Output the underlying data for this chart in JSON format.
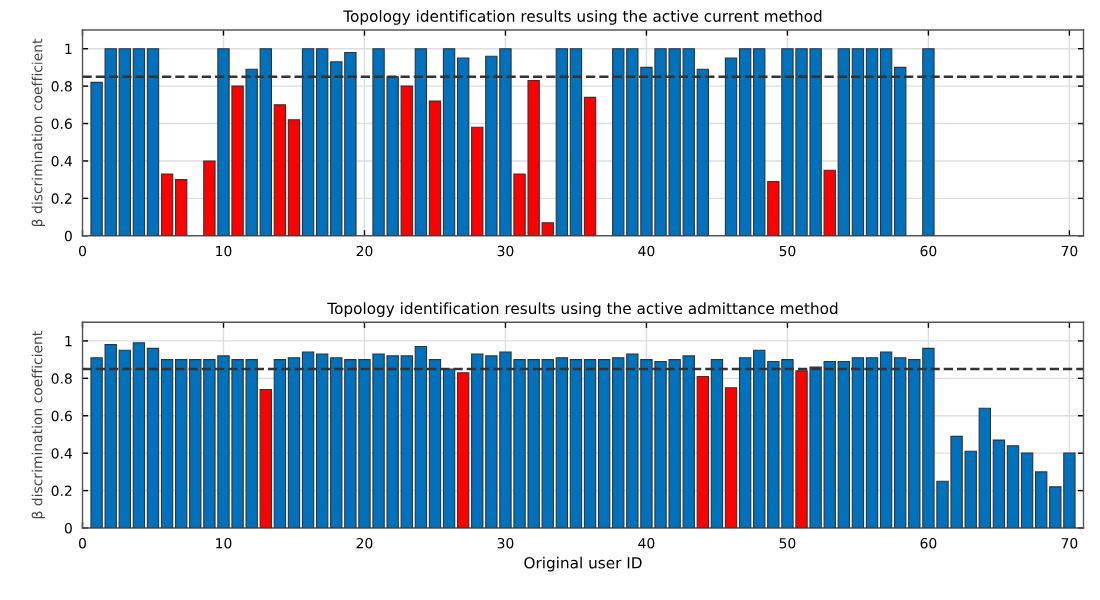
{
  "chart_data": [
    {
      "type": "bar",
      "title": "Topology identification results using the active current method",
      "ylabel": "β discrimination coefficient",
      "x": [
        1,
        2,
        3,
        4,
        5,
        6,
        7,
        8,
        9,
        10,
        11,
        12,
        13,
        14,
        15,
        16,
        17,
        18,
        19,
        20,
        21,
        22,
        23,
        24,
        25,
        26,
        27,
        28,
        29,
        30,
        31,
        32,
        33,
        34,
        35,
        36,
        37,
        38,
        39,
        40,
        41,
        42,
        43,
        44,
        45,
        46,
        47,
        48,
        49,
        50,
        51,
        52,
        53,
        54,
        55,
        56,
        57,
        58,
        59,
        60
      ],
      "values": [
        0.82,
        1,
        1,
        1,
        1,
        0.33,
        0.3,
        null,
        0.4,
        1,
        0.8,
        0.89,
        1,
        0.7,
        0.62,
        1,
        1,
        0.93,
        0.98,
        null,
        1,
        0.85,
        0.8,
        1,
        0.72,
        1,
        0.95,
        0.58,
        0.96,
        1,
        0.33,
        0.83,
        0.07,
        1,
        1,
        0.74,
        null,
        1,
        1,
        0.9,
        1,
        1,
        1,
        0.89,
        null,
        0.95,
        1,
        1,
        0.29,
        1,
        1,
        1,
        0.35,
        1,
        1,
        1,
        1,
        0.9,
        null,
        1
      ],
      "colors": [
        "#0072bd",
        "#0072bd",
        "#0072bd",
        "#0072bd",
        "#0072bd",
        "#ff0000",
        "#ff0000",
        "#0072bd",
        "#ff0000",
        "#0072bd",
        "#ff0000",
        "#0072bd",
        "#0072bd",
        "#ff0000",
        "#ff0000",
        "#0072bd",
        "#0072bd",
        "#0072bd",
        "#0072bd",
        "#0072bd",
        "#0072bd",
        "#0072bd",
        "#ff0000",
        "#0072bd",
        "#ff0000",
        "#0072bd",
        "#0072bd",
        "#ff0000",
        "#0072bd",
        "#0072bd",
        "#ff0000",
        "#ff0000",
        "#ff0000",
        "#0072bd",
        "#0072bd",
        "#ff0000",
        "#0072bd",
        "#0072bd",
        "#0072bd",
        "#0072bd",
        "#0072bd",
        "#0072bd",
        "#0072bd",
        "#0072bd",
        "#0072bd",
        "#0072bd",
        "#0072bd",
        "#0072bd",
        "#ff0000",
        "#0072bd",
        "#0072bd",
        "#0072bd",
        "#ff0000",
        "#0072bd",
        "#0072bd",
        "#0072bd",
        "#0072bd",
        "#0072bd",
        "#0072bd",
        "#0072bd"
      ],
      "xlim": [
        0,
        71
      ],
      "xticks": [
        0,
        10,
        20,
        30,
        40,
        50,
        60,
        70
      ],
      "ylim": [
        0,
        1.1
      ],
      "yticks": [
        0,
        0.2,
        0.4,
        0.6,
        0.8,
        1
      ],
      "grid": true,
      "ref_lines": [
        {
          "axis": "y",
          "value": 0.85,
          "color": "#333333",
          "line_style": "dashed"
        }
      ]
    },
    {
      "type": "bar",
      "title": "Topology identification results using the active admittance method",
      "ylabel": "β discrimination coefficient",
      "xlabel": "Original user ID",
      "x": [
        1,
        2,
        3,
        4,
        5,
        6,
        7,
        8,
        9,
        10,
        11,
        12,
        13,
        14,
        15,
        16,
        17,
        18,
        19,
        20,
        21,
        22,
        23,
        24,
        25,
        26,
        27,
        28,
        29,
        30,
        31,
        32,
        33,
        34,
        35,
        36,
        37,
        38,
        39,
        40,
        41,
        42,
        43,
        44,
        45,
        46,
        47,
        48,
        49,
        50,
        51,
        52,
        53,
        54,
        55,
        56,
        57,
        58,
        59,
        60,
        61,
        62,
        63,
        64,
        65,
        66,
        67,
        68,
        69,
        70
      ],
      "values": [
        0.91,
        0.98,
        0.95,
        0.99,
        0.96,
        0.9,
        0.9,
        0.9,
        0.9,
        0.92,
        0.9,
        0.9,
        0.74,
        0.9,
        0.91,
        0.94,
        0.93,
        0.91,
        0.9,
        0.9,
        0.93,
        0.92,
        0.92,
        0.97,
        0.9,
        0.85,
        0.83,
        0.93,
        0.92,
        0.94,
        0.9,
        0.9,
        0.9,
        0.91,
        0.9,
        0.9,
        0.9,
        0.91,
        0.93,
        0.9,
        0.89,
        0.9,
        0.92,
        0.81,
        0.9,
        0.75,
        0.91,
        0.95,
        0.89,
        0.9,
        0.84,
        0.86,
        0.89,
        0.89,
        0.91,
        0.91,
        0.94,
        0.91,
        0.9,
        0.96,
        0.25,
        0.49,
        0.41,
        0.64,
        0.47,
        0.44,
        0.4,
        0.3,
        0.22,
        0.4
      ],
      "colors": [
        "#0072bd",
        "#0072bd",
        "#0072bd",
        "#0072bd",
        "#0072bd",
        "#0072bd",
        "#0072bd",
        "#0072bd",
        "#0072bd",
        "#0072bd",
        "#0072bd",
        "#0072bd",
        "#ff0000",
        "#0072bd",
        "#0072bd",
        "#0072bd",
        "#0072bd",
        "#0072bd",
        "#0072bd",
        "#0072bd",
        "#0072bd",
        "#0072bd",
        "#0072bd",
        "#0072bd",
        "#0072bd",
        "#0072bd",
        "#ff0000",
        "#0072bd",
        "#0072bd",
        "#0072bd",
        "#0072bd",
        "#0072bd",
        "#0072bd",
        "#0072bd",
        "#0072bd",
        "#0072bd",
        "#0072bd",
        "#0072bd",
        "#0072bd",
        "#0072bd",
        "#0072bd",
        "#0072bd",
        "#0072bd",
        "#ff0000",
        "#0072bd",
        "#ff0000",
        "#0072bd",
        "#0072bd",
        "#0072bd",
        "#0072bd",
        "#ff0000",
        "#0072bd",
        "#0072bd",
        "#0072bd",
        "#0072bd",
        "#0072bd",
        "#0072bd",
        "#0072bd",
        "#0072bd",
        "#0072bd",
        "#0072bd",
        "#0072bd",
        "#0072bd",
        "#0072bd",
        "#0072bd",
        "#0072bd",
        "#0072bd",
        "#0072bd",
        "#0072bd",
        "#0072bd"
      ],
      "xlim": [
        0,
        71
      ],
      "xticks": [
        0,
        10,
        20,
        30,
        40,
        50,
        60,
        70
      ],
      "ylim": [
        0,
        1.1
      ],
      "yticks": [
        0,
        0.2,
        0.4,
        0.6,
        0.8,
        1
      ],
      "grid": true,
      "ref_lines": [
        {
          "axis": "y",
          "value": 0.85,
          "color": "#333333",
          "line_style": "dashed"
        }
      ]
    }
  ]
}
